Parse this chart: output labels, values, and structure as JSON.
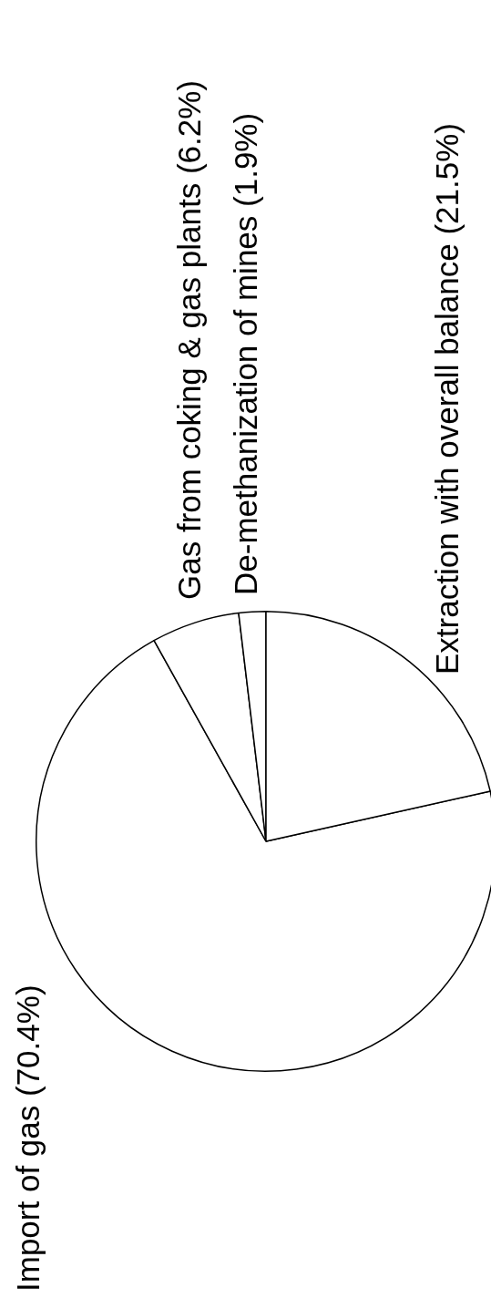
{
  "chart_data": {
    "type": "pie",
    "categories": [
      "Import of gas (70.4%)",
      "Gas from coking & gas plants (6.2%)",
      "De-methanization of mines (1.9%)",
      "Extraction with overall balance (21.5%)"
    ],
    "values": [
      70.4,
      6.2,
      1.9,
      21.5
    ],
    "colors": [
      "#ffffff",
      "#ffffff",
      "#ffffff",
      "#ffffff"
    ],
    "legend": false
  }
}
